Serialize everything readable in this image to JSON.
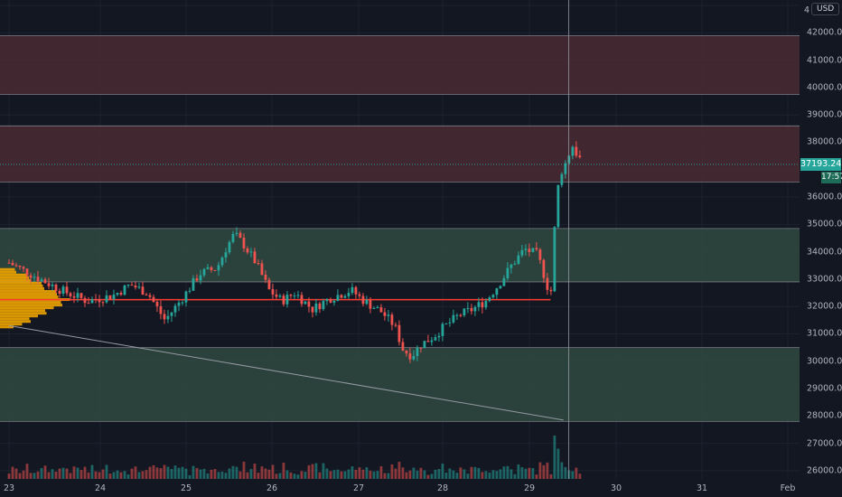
{
  "axis": {
    "currency": "USD",
    "top_label": "4",
    "price_labels": [
      "42000.00",
      "41000.00",
      "40000.00",
      "39000.00",
      "38000.00",
      "36000.00",
      "35000.00",
      "34000.00",
      "33000.00",
      "32000.00",
      "31000.00",
      "30000.00",
      "29000.00",
      "28000.00",
      "27000.00",
      "26000.00"
    ],
    "current_price": "37193.24",
    "countdown": "17:57",
    "time_labels": [
      "23",
      "24",
      "25",
      "26",
      "27",
      "28",
      "29",
      "30",
      "31",
      "Feb"
    ]
  },
  "colors": {
    "background": "#131722",
    "up": "#26a69a",
    "down": "#ef5350",
    "resistance_zone": "#4a2b33",
    "support_zone": "#2f4a3f",
    "poc_line": "#ff3b30",
    "volume_profile": "#f0a500"
  },
  "chart_data": {
    "type": "candlestick",
    "symbol_quote": "USD",
    "ylim": [
      25700,
      43200
    ],
    "x_days": [
      "23",
      "24",
      "25",
      "26",
      "27",
      "28",
      "29",
      "30",
      "31",
      "Feb"
    ],
    "zones": [
      {
        "kind": "resistance",
        "low": 39750,
        "high": 41900
      },
      {
        "kind": "resistance",
        "low": 36550,
        "high": 38600
      },
      {
        "kind": "support",
        "low": 32900,
        "high": 34850
      },
      {
        "kind": "support",
        "low": 27800,
        "high": 30500
      }
    ],
    "point_of_control": 32250,
    "trendline": [
      {
        "day": 23.0,
        "price": 31300
      },
      {
        "day": 29.4,
        "price": 27850
      }
    ],
    "close_path": [
      [
        23.0,
        33600
      ],
      [
        23.3,
        33100
      ],
      [
        23.6,
        32600
      ],
      [
        23.9,
        32200
      ],
      [
        24.2,
        32400
      ],
      [
        24.4,
        32800
      ],
      [
        24.6,
        32500
      ],
      [
        24.8,
        31500
      ],
      [
        25.0,
        32300
      ],
      [
        25.2,
        33200
      ],
      [
        25.4,
        33400
      ],
      [
        25.5,
        34100
      ],
      [
        25.6,
        34650
      ],
      [
        25.7,
        34300
      ],
      [
        25.85,
        33600
      ],
      [
        26.0,
        32600
      ],
      [
        26.15,
        32200
      ],
      [
        26.3,
        32500
      ],
      [
        26.5,
        31900
      ],
      [
        26.7,
        32300
      ],
      [
        26.95,
        32600
      ],
      [
        27.1,
        32200
      ],
      [
        27.3,
        31800
      ],
      [
        27.45,
        31300
      ],
      [
        27.55,
        30400
      ],
      [
        27.65,
        30200
      ],
      [
        27.75,
        30600
      ],
      [
        27.9,
        30900
      ],
      [
        28.0,
        31200
      ],
      [
        28.2,
        31700
      ],
      [
        28.35,
        31900
      ],
      [
        28.5,
        32200
      ],
      [
        28.65,
        32800
      ],
      [
        28.8,
        33500
      ],
      [
        28.95,
        34100
      ],
      [
        29.1,
        33900
      ],
      [
        29.2,
        32900
      ],
      [
        29.25,
        32300
      ],
      [
        29.3,
        35000
      ],
      [
        29.35,
        36800
      ],
      [
        29.42,
        37200
      ],
      [
        29.5,
        37900
      ],
      [
        29.58,
        37400
      ]
    ]
  }
}
